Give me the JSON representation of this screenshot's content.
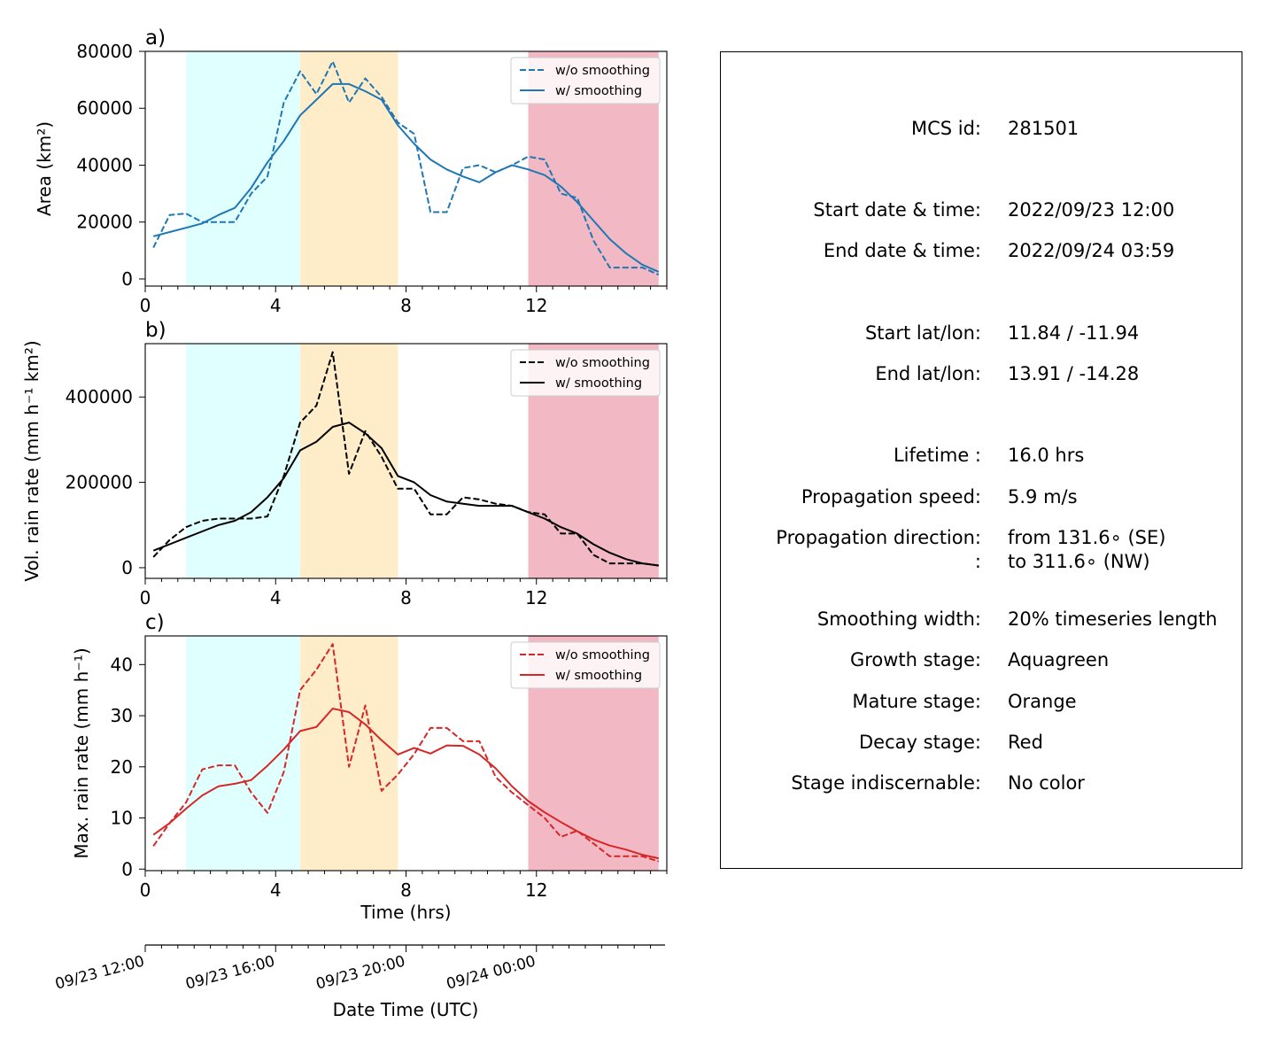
{
  "chart_data": [
    {
      "type": "line",
      "panel_label": "a)",
      "ylabel": "Area  (km²)",
      "xlim": [
        0,
        16
      ],
      "ylim": [
        -2500,
        80000
      ],
      "x_ticks": [
        0,
        4,
        8,
        12
      ],
      "y_ticks": [
        0,
        20000,
        40000,
        60000,
        80000
      ],
      "stages": [
        {
          "name": "Growth stage",
          "x": [
            1.25,
            4.75
          ],
          "color": "#e0ffff"
        },
        {
          "name": "Mature stage",
          "x": [
            4.75,
            7.75
          ],
          "color": "#ffecc8"
        },
        {
          "name": "Decay stage",
          "x": [
            11.75,
            15.75
          ],
          "color": "#f2b8c4"
        }
      ],
      "legend": "top-right",
      "series": [
        {
          "name": "w/o smoothing",
          "style": "dashed",
          "color": "#1f77b4",
          "x": [
            0.25,
            0.75,
            1.25,
            1.75,
            2.25,
            2.75,
            3.25,
            3.75,
            4.25,
            4.75,
            5.25,
            5.75,
            6.25,
            6.75,
            7.25,
            7.75,
            8.25,
            8.75,
            9.25,
            9.75,
            10.25,
            10.75,
            11.25,
            11.75,
            12.25,
            12.75,
            13.25,
            13.75,
            14.25,
            14.75,
            15.25,
            15.75
          ],
          "y": [
            11000,
            22500,
            23000,
            20000,
            20000,
            20000,
            30000,
            36000,
            62000,
            73000,
            65000,
            76500,
            62000,
            70500,
            64000,
            55000,
            51000,
            23500,
            23500,
            39000,
            40000,
            37500,
            40000,
            43000,
            42000,
            30000,
            28500,
            13500,
            4000,
            4000,
            4000,
            1500
          ]
        },
        {
          "name": "w/ smoothing",
          "style": "solid",
          "color": "#1f77b4",
          "x": [
            0.25,
            0.75,
            1.25,
            1.75,
            2.25,
            2.75,
            3.25,
            3.75,
            4.25,
            4.75,
            5.25,
            5.75,
            6.25,
            6.75,
            7.25,
            7.75,
            8.25,
            8.75,
            9.25,
            9.75,
            10.25,
            10.75,
            11.25,
            11.75,
            12.25,
            12.75,
            13.25,
            13.75,
            14.25,
            14.75,
            15.25,
            15.75
          ],
          "y": [
            15000,
            16500,
            18000,
            19500,
            22500,
            25000,
            32000,
            41000,
            48500,
            57500,
            63000,
            68500,
            68500,
            66000,
            63000,
            54000,
            47500,
            42000,
            38500,
            36000,
            34000,
            37500,
            40000,
            38500,
            36500,
            32500,
            27000,
            20500,
            14000,
            9000,
            5000,
            2500
          ]
        }
      ]
    },
    {
      "type": "line",
      "panel_label": "b)",
      "ylabel": "Vol. rain rate (mm h⁻¹ km²)",
      "xlim": [
        0,
        16
      ],
      "ylim": [
        -25000,
        525000
      ],
      "x_ticks": [
        0,
        4,
        8,
        12
      ],
      "y_ticks": [
        0,
        200000,
        400000
      ],
      "stages": [
        {
          "name": "Growth stage",
          "x": [
            1.25,
            4.75
          ],
          "color": "#e0ffff"
        },
        {
          "name": "Mature stage",
          "x": [
            4.75,
            7.75
          ],
          "color": "#ffecc8"
        },
        {
          "name": "Decay stage",
          "x": [
            11.75,
            15.75
          ],
          "color": "#f2b8c4"
        }
      ],
      "legend": "top-right",
      "series": [
        {
          "name": "w/o smoothing",
          "style": "dashed",
          "color": "#000000",
          "x": [
            0.25,
            0.75,
            1.25,
            1.75,
            2.25,
            2.75,
            3.25,
            3.75,
            4.25,
            4.75,
            5.25,
            5.75,
            6.25,
            6.75,
            7.25,
            7.75,
            8.25,
            8.75,
            9.25,
            9.75,
            10.25,
            10.75,
            11.25,
            11.75,
            12.25,
            12.75,
            13.25,
            13.75,
            14.25,
            14.75,
            15.25,
            15.75
          ],
          "y": [
            25000,
            65000,
            95000,
            110000,
            115000,
            115000,
            115000,
            120000,
            215000,
            340000,
            380000,
            505000,
            220000,
            320000,
            260000,
            185000,
            185000,
            125000,
            125000,
            165000,
            160000,
            150000,
            145000,
            130000,
            125000,
            80000,
            80000,
            30000,
            10000,
            10000,
            10000,
            5000
          ]
        },
        {
          "name": "w/ smoothing",
          "style": "solid",
          "color": "#000000",
          "x": [
            0.25,
            0.75,
            1.25,
            1.75,
            2.25,
            2.75,
            3.25,
            3.75,
            4.25,
            4.75,
            5.25,
            5.75,
            6.25,
            6.75,
            7.25,
            7.75,
            8.25,
            8.75,
            9.25,
            9.75,
            10.25,
            10.75,
            11.25,
            11.75,
            12.25,
            12.75,
            13.25,
            13.75,
            14.25,
            14.75,
            15.25,
            15.75
          ],
          "y": [
            40000,
            55000,
            70000,
            85000,
            100000,
            110000,
            130000,
            165000,
            210000,
            275000,
            295000,
            330000,
            340000,
            315000,
            280000,
            215000,
            200000,
            170000,
            155000,
            150000,
            145000,
            145000,
            145000,
            130000,
            115000,
            95000,
            80000,
            55000,
            35000,
            20000,
            10000,
            5000
          ]
        }
      ]
    },
    {
      "type": "line",
      "panel_label": "c)",
      "ylabel": "Max. rain rate  (mm h⁻¹)",
      "xlabel": "Time (hrs)",
      "xlim": [
        0,
        16
      ],
      "ylim": [
        -0.3,
        45.6
      ],
      "x_ticks": [
        0,
        4,
        8,
        12
      ],
      "y_ticks": [
        0,
        10,
        20,
        30,
        40
      ],
      "stages": [
        {
          "name": "Growth stage",
          "x": [
            1.25,
            4.75
          ],
          "color": "#e0ffff"
        },
        {
          "name": "Mature stage",
          "x": [
            4.75,
            7.75
          ],
          "color": "#ffecc8"
        },
        {
          "name": "Decay stage",
          "x": [
            11.75,
            15.75
          ],
          "color": "#f2b8c4"
        }
      ],
      "legend": "top-right",
      "series": [
        {
          "name": "w/o smoothing",
          "style": "dashed",
          "color": "#d62728",
          "x": [
            0.25,
            0.75,
            1.25,
            1.75,
            2.25,
            2.75,
            3.25,
            3.75,
            4.25,
            4.75,
            5.25,
            5.75,
            6.25,
            6.75,
            7.25,
            7.75,
            8.25,
            8.75,
            9.25,
            9.75,
            10.25,
            10.75,
            11.25,
            11.75,
            12.25,
            12.75,
            13.25,
            13.75,
            14.25,
            14.75,
            15.25,
            15.75
          ],
          "y": [
            4.5,
            9,
            13,
            19.5,
            20.3,
            20.3,
            15,
            11,
            19,
            35,
            39,
            44,
            20,
            32,
            15.3,
            18.5,
            22.5,
            27.6,
            27.6,
            25,
            25,
            18,
            15,
            12.5,
            10,
            6.3,
            7.5,
            5,
            2.5,
            2.5,
            2.5,
            1.5
          ]
        },
        {
          "name": "w/ smoothing",
          "style": "solid",
          "color": "#d62728",
          "x": [
            0.25,
            0.75,
            1.25,
            1.75,
            2.25,
            2.75,
            3.25,
            3.75,
            4.25,
            4.75,
            5.25,
            5.75,
            6.25,
            6.75,
            7.25,
            7.75,
            8.25,
            8.75,
            9.25,
            9.75,
            10.25,
            10.75,
            11.25,
            11.75,
            12.25,
            12.75,
            13.25,
            13.75,
            14.25,
            14.75,
            15.25,
            15.75
          ],
          "y": [
            6.7,
            9,
            11.8,
            14.4,
            16.2,
            16.7,
            17.4,
            20.2,
            23.4,
            27,
            27.8,
            31.4,
            30.7,
            28.3,
            25.2,
            22.4,
            23.7,
            22.6,
            24.2,
            24.1,
            22.4,
            19.7,
            16.2,
            13.3,
            11.1,
            9.2,
            7.4,
            5.8,
            4.6,
            3.8,
            2.8,
            2.1
          ]
        }
      ]
    }
  ],
  "date_axis": {
    "xlabel": "Date Time (UTC)",
    "tick_labels": [
      {
        "t": 0,
        "label": "09/23 12:00"
      },
      {
        "t": 4,
        "label": "09/23 16:00"
      },
      {
        "t": 8,
        "label": "09/23 20:00"
      },
      {
        "t": 12,
        "label": "09/24 00:00"
      }
    ]
  },
  "info_panel": [
    {
      "key": "MCS id:",
      "value": "281501"
    },
    {
      "key": "Start date & time:",
      "value": "2022/09/23 12:00"
    },
    {
      "key": "End date & time:",
      "value": "2022/09/24 03:59"
    },
    {
      "key": "Start lat/lon:",
      "value": "11.84 / -11.94"
    },
    {
      "key": "End lat/lon:",
      "value": "13.91 / -14.28"
    },
    {
      "key": "Lifetime :",
      "value": "16.0 hrs"
    },
    {
      "key": "Propagation speed:",
      "value": "5.9 m/s"
    },
    {
      "key": "Propagation direction:",
      "value": "from 131.6∘ (SE)"
    },
    {
      "key": ":",
      "value": "to   311.6∘ (NW)"
    },
    {
      "key": "Smoothing width:",
      "value": "20% timeseries length"
    },
    {
      "key": "Growth stage:",
      "value": "Aquagreen"
    },
    {
      "key": "Mature stage:",
      "value": "Orange"
    },
    {
      "key": "Decay stage:",
      "value": "Red"
    },
    {
      "key": "Stage indiscernable:",
      "value": "No color"
    }
  ]
}
